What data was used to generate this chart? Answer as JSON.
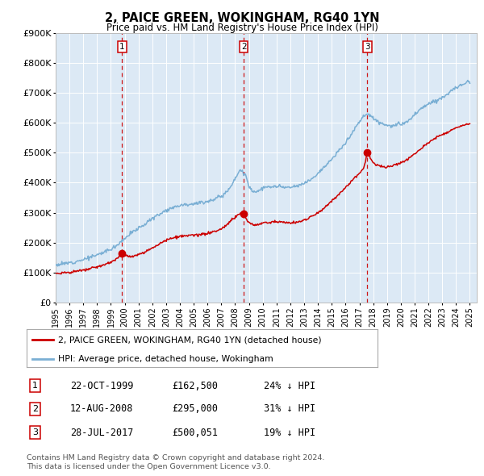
{
  "title": "2, PAICE GREEN, WOKINGHAM, RG40 1YN",
  "subtitle": "Price paid vs. HM Land Registry's House Price Index (HPI)",
  "bg_color": "#dce9f5",
  "grid_color": "#ffffff",
  "ylim": [
    0,
    900000
  ],
  "yticks": [
    0,
    100000,
    200000,
    300000,
    400000,
    500000,
    600000,
    700000,
    800000,
    900000
  ],
  "ytick_labels": [
    "£0",
    "£100K",
    "£200K",
    "£300K",
    "£400K",
    "£500K",
    "£600K",
    "£700K",
    "£800K",
    "£900K"
  ],
  "sale_dates": [
    1999.81,
    2008.62,
    2017.58
  ],
  "sale_prices": [
    162500,
    295000,
    500051
  ],
  "sale_color": "#cc0000",
  "hpi_color": "#7aafd4",
  "legend_label_red": "2, PAICE GREEN, WOKINGHAM, RG40 1YN (detached house)",
  "legend_label_blue": "HPI: Average price, detached house, Wokingham",
  "table_entries": [
    {
      "num": 1,
      "date": "22-OCT-1999",
      "price": "£162,500",
      "pct": "24% ↓ HPI"
    },
    {
      "num": 2,
      "date": "12-AUG-2008",
      "price": "£295,000",
      "pct": "31% ↓ HPI"
    },
    {
      "num": 3,
      "date": "28-JUL-2017",
      "price": "£500,051",
      "pct": "19% ↓ HPI"
    }
  ],
  "footnote1": "Contains HM Land Registry data © Crown copyright and database right 2024.",
  "footnote2": "This data is licensed under the Open Government Licence v3.0.",
  "xmin": 1995.0,
  "xmax": 2025.5,
  "hpi_anchors": [
    [
      1995.0,
      125000
    ],
    [
      1996.0,
      132000
    ],
    [
      1997.0,
      143000
    ],
    [
      1998.0,
      158000
    ],
    [
      1999.0,
      178000
    ],
    [
      1999.5,
      193000
    ],
    [
      2000.0,
      215000
    ],
    [
      2000.5,
      232000
    ],
    [
      2001.0,
      248000
    ],
    [
      2001.5,
      263000
    ],
    [
      2002.0,
      280000
    ],
    [
      2002.5,
      295000
    ],
    [
      2003.0,
      308000
    ],
    [
      2003.5,
      318000
    ],
    [
      2004.0,
      325000
    ],
    [
      2004.5,
      328000
    ],
    [
      2005.0,
      330000
    ],
    [
      2005.5,
      333000
    ],
    [
      2006.0,
      338000
    ],
    [
      2006.5,
      345000
    ],
    [
      2007.0,
      355000
    ],
    [
      2007.5,
      375000
    ],
    [
      2008.0,
      415000
    ],
    [
      2008.4,
      445000
    ],
    [
      2008.8,
      420000
    ],
    [
      2009.0,
      385000
    ],
    [
      2009.3,
      372000
    ],
    [
      2009.6,
      370000
    ],
    [
      2010.0,
      382000
    ],
    [
      2010.5,
      385000
    ],
    [
      2011.0,
      388000
    ],
    [
      2011.5,
      385000
    ],
    [
      2012.0,
      383000
    ],
    [
      2012.5,
      388000
    ],
    [
      2013.0,
      398000
    ],
    [
      2013.5,
      412000
    ],
    [
      2014.0,
      432000
    ],
    [
      2014.5,
      455000
    ],
    [
      2015.0,
      478000
    ],
    [
      2015.5,
      505000
    ],
    [
      2016.0,
      535000
    ],
    [
      2016.5,
      568000
    ],
    [
      2017.0,
      605000
    ],
    [
      2017.3,
      622000
    ],
    [
      2017.6,
      630000
    ],
    [
      2017.9,
      622000
    ],
    [
      2018.2,
      610000
    ],
    [
      2018.5,
      600000
    ],
    [
      2018.8,
      595000
    ],
    [
      2019.0,
      592000
    ],
    [
      2019.3,
      590000
    ],
    [
      2019.6,
      592000
    ],
    [
      2019.9,
      595000
    ],
    [
      2020.2,
      598000
    ],
    [
      2020.5,
      605000
    ],
    [
      2020.8,
      618000
    ],
    [
      2021.0,
      628000
    ],
    [
      2021.3,
      640000
    ],
    [
      2021.6,
      652000
    ],
    [
      2021.9,
      660000
    ],
    [
      2022.2,
      668000
    ],
    [
      2022.5,
      675000
    ],
    [
      2022.8,
      680000
    ],
    [
      2023.0,
      685000
    ],
    [
      2023.3,
      695000
    ],
    [
      2023.6,
      705000
    ],
    [
      2023.9,
      715000
    ],
    [
      2024.2,
      722000
    ],
    [
      2024.5,
      730000
    ],
    [
      2024.8,
      738000
    ],
    [
      2025.0,
      742000
    ]
  ],
  "red_anchors": [
    [
      1995.0,
      97000
    ],
    [
      1996.0,
      100000
    ],
    [
      1997.0,
      107000
    ],
    [
      1998.0,
      118000
    ],
    [
      1999.0,
      133000
    ],
    [
      1999.5,
      148000
    ],
    [
      1999.81,
      162500
    ],
    [
      2000.2,
      155000
    ],
    [
      2000.5,
      152000
    ],
    [
      2001.0,
      158000
    ],
    [
      2001.5,
      168000
    ],
    [
      2002.0,
      182000
    ],
    [
      2002.5,
      196000
    ],
    [
      2003.0,
      208000
    ],
    [
      2003.5,
      215000
    ],
    [
      2004.0,
      220000
    ],
    [
      2004.5,
      222000
    ],
    [
      2005.0,
      224000
    ],
    [
      2005.5,
      226000
    ],
    [
      2006.0,
      230000
    ],
    [
      2006.5,
      236000
    ],
    [
      2007.0,
      245000
    ],
    [
      2007.5,
      264000
    ],
    [
      2008.0,
      285000
    ],
    [
      2008.4,
      298000
    ],
    [
      2008.62,
      295000
    ],
    [
      2008.9,
      270000
    ],
    [
      2009.1,
      262000
    ],
    [
      2009.4,
      258000
    ],
    [
      2009.7,
      260000
    ],
    [
      2010.0,
      265000
    ],
    [
      2010.5,
      268000
    ],
    [
      2011.0,
      270000
    ],
    [
      2011.5,
      268000
    ],
    [
      2012.0,
      265000
    ],
    [
      2012.5,
      268000
    ],
    [
      2013.0,
      275000
    ],
    [
      2013.5,
      286000
    ],
    [
      2014.0,
      300000
    ],
    [
      2014.5,
      318000
    ],
    [
      2015.0,
      338000
    ],
    [
      2015.5,
      360000
    ],
    [
      2016.0,
      385000
    ],
    [
      2016.5,
      410000
    ],
    [
      2017.0,
      432000
    ],
    [
      2017.3,
      445000
    ],
    [
      2017.58,
      500051
    ],
    [
      2017.9,
      472000
    ],
    [
      2018.2,
      460000
    ],
    [
      2018.5,
      455000
    ],
    [
      2018.8,
      452000
    ],
    [
      2019.0,
      453000
    ],
    [
      2019.3,
      455000
    ],
    [
      2019.6,
      460000
    ],
    [
      2019.9,
      465000
    ],
    [
      2020.2,
      470000
    ],
    [
      2020.5,
      478000
    ],
    [
      2020.8,
      490000
    ],
    [
      2021.0,
      498000
    ],
    [
      2021.3,
      508000
    ],
    [
      2021.6,
      520000
    ],
    [
      2021.9,
      530000
    ],
    [
      2022.2,
      540000
    ],
    [
      2022.5,
      550000
    ],
    [
      2022.8,
      558000
    ],
    [
      2023.0,
      562000
    ],
    [
      2023.3,
      568000
    ],
    [
      2023.6,
      575000
    ],
    [
      2023.9,
      582000
    ],
    [
      2024.2,
      587000
    ],
    [
      2024.5,
      592000
    ],
    [
      2024.8,
      595000
    ],
    [
      2025.0,
      595000
    ]
  ]
}
